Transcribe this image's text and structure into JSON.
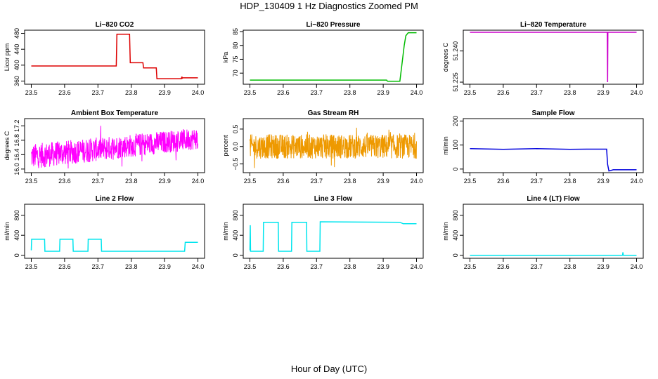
{
  "figure": {
    "title": "HDP_130409  1 Hz Diagnostics Zoomed PM",
    "xlabel": "Hour of Day (UTC)"
  },
  "chart_data": [
    {
      "type": "line",
      "title": "Li−820 CO2",
      "ylabel": "Licor ppm",
      "color": "#dd0000",
      "xlim": [
        23.48,
        24.02
      ],
      "ylim": [
        352,
        488
      ],
      "xticks": [
        "23.5",
        "23.6",
        "23.7",
        "23.8",
        "23.9",
        "24.0"
      ],
      "yticks": [
        "360",
        "400",
        "440",
        "480"
      ],
      "x": [
        23.5,
        23.755,
        23.757,
        23.795,
        23.797,
        23.835,
        23.837,
        23.875,
        23.877,
        23.95,
        23.952,
        23.953,
        23.955,
        24.0
      ],
      "y": [
        398,
        398,
        478,
        478,
        406,
        406,
        393,
        393,
        366,
        366,
        371,
        367,
        368,
        368
      ]
    },
    {
      "type": "line",
      "title": "Li−820 Pressure",
      "ylabel": "kPa",
      "color": "#00bb00",
      "xlim": [
        23.48,
        24.02
      ],
      "ylim": [
        66,
        85.5
      ],
      "xticks": [
        "23.5",
        "23.6",
        "23.7",
        "23.8",
        "23.9",
        "24.0"
      ],
      "yticks": [
        "70",
        "75",
        "80",
        "85"
      ],
      "x": [
        23.5,
        23.91,
        23.913,
        23.95,
        23.955,
        23.963,
        23.968,
        23.975,
        24.0
      ],
      "y": [
        67.5,
        67.5,
        67.1,
        67.1,
        72,
        80,
        83.5,
        84.6,
        84.6
      ]
    },
    {
      "type": "line",
      "title": "Li−820 Temperature",
      "ylabel": "degrees C",
      "color": "#cc00cc",
      "xlim": [
        23.48,
        24.02
      ],
      "ylim": [
        51.224,
        51.25
      ],
      "xticks": [
        "23.5",
        "23.6",
        "23.7",
        "23.8",
        "23.9",
        "24.0"
      ],
      "yticks": [
        "51.225",
        "51.240"
      ],
      "x": [
        23.5,
        23.912,
        23.913,
        23.914,
        24.0
      ],
      "y": [
        51.249,
        51.249,
        51.225,
        51.249,
        51.249
      ]
    },
    {
      "type": "line",
      "title": "Ambient Box Temperature",
      "ylabel": "degrees C",
      "color": "#ff00ff",
      "xlim": [
        23.48,
        24.02
      ],
      "ylim": [
        15.9,
        17.4
      ],
      "xticks": [
        "23.5",
        "23.6",
        "23.7",
        "23.8",
        "23.9",
        "24.0"
      ],
      "yticks": [
        "16.0",
        "16.4",
        "16.8",
        "17.2"
      ],
      "noise_band": {
        "x0": 23.5,
        "x1": 24.0,
        "low0": 16.0,
        "high0": 16.7,
        "low1": 16.55,
        "high1": 17.15
      }
    },
    {
      "type": "line",
      "title": "Gas Stream RH",
      "ylabel": "percent",
      "color": "#ee9900",
      "xlim": [
        23.48,
        24.02
      ],
      "ylim": [
        -0.75,
        0.8
      ],
      "xticks": [
        "23.5",
        "23.6",
        "23.7",
        "23.8",
        "23.9",
        "24.0"
      ],
      "yticks": [
        "−0.5",
        "0.0",
        "0.5"
      ],
      "noise_band": {
        "x0": 23.5,
        "x1": 24.0,
        "low0": -0.35,
        "high0": 0.35,
        "low1": -0.35,
        "high1": 0.35
      }
    },
    {
      "type": "line",
      "title": "Sample Flow",
      "ylabel": "ml/min",
      "color": "#0000dd",
      "xlim": [
        23.48,
        24.02
      ],
      "ylim": [
        -15,
        210
      ],
      "xticks": [
        "23.5",
        "23.6",
        "23.7",
        "23.8",
        "23.9",
        "24.0"
      ],
      "yticks": [
        "0",
        "100",
        "200"
      ],
      "x": [
        23.5,
        23.6,
        23.7,
        23.8,
        23.85,
        23.91,
        23.913,
        23.917,
        23.93,
        24.0
      ],
      "y": [
        85,
        82,
        85,
        82,
        83,
        83,
        20,
        -8,
        -3,
        -3
      ]
    },
    {
      "type": "line",
      "title": "Line 2 Flow",
      "ylabel": "ml/min",
      "color": "#00e5ee",
      "xlim": [
        23.48,
        24.02
      ],
      "ylim": [
        -60,
        1020
      ],
      "xticks": [
        "23.5",
        "23.6",
        "23.7",
        "23.8",
        "23.9",
        "24.0"
      ],
      "yticks": [
        "0",
        "400",
        "800"
      ],
      "x": [
        23.5,
        23.501,
        23.54,
        23.541,
        23.585,
        23.586,
        23.625,
        23.626,
        23.67,
        23.671,
        23.71,
        23.711,
        23.96,
        23.962,
        24.0
      ],
      "y": [
        100,
        320,
        320,
        80,
        80,
        320,
        320,
        80,
        80,
        320,
        320,
        80,
        80,
        260,
        260
      ]
    },
    {
      "type": "line",
      "title": "Line 3 Flow",
      "ylabel": "ml/min",
      "color": "#00e5ee",
      "xlim": [
        23.48,
        24.02
      ],
      "ylim": [
        -60,
        1020
      ],
      "xticks": [
        "23.5",
        "23.6",
        "23.7",
        "23.8",
        "23.9",
        "24.0"
      ],
      "yticks": [
        "0",
        "400",
        "800"
      ],
      "x": [
        23.5,
        23.501,
        23.502,
        23.54,
        23.541,
        23.585,
        23.586,
        23.625,
        23.626,
        23.67,
        23.671,
        23.71,
        23.711,
        23.95,
        23.96,
        24.0
      ],
      "y": [
        100,
        600,
        80,
        80,
        660,
        660,
        80,
        80,
        660,
        660,
        80,
        80,
        670,
        660,
        630,
        630
      ]
    },
    {
      "type": "line",
      "title": "Line 4 (LT) Flow",
      "ylabel": "ml/min",
      "color": "#00e5ee",
      "xlim": [
        23.48,
        24.02
      ],
      "ylim": [
        -60,
        1020
      ],
      "xticks": [
        "23.5",
        "23.6",
        "23.7",
        "23.8",
        "23.9",
        "24.0"
      ],
      "yticks": [
        "0",
        "400",
        "800"
      ],
      "x": [
        23.5,
        23.958,
        23.959,
        23.96,
        24.0
      ],
      "y": [
        0,
        0,
        60,
        0,
        0
      ]
    }
  ]
}
